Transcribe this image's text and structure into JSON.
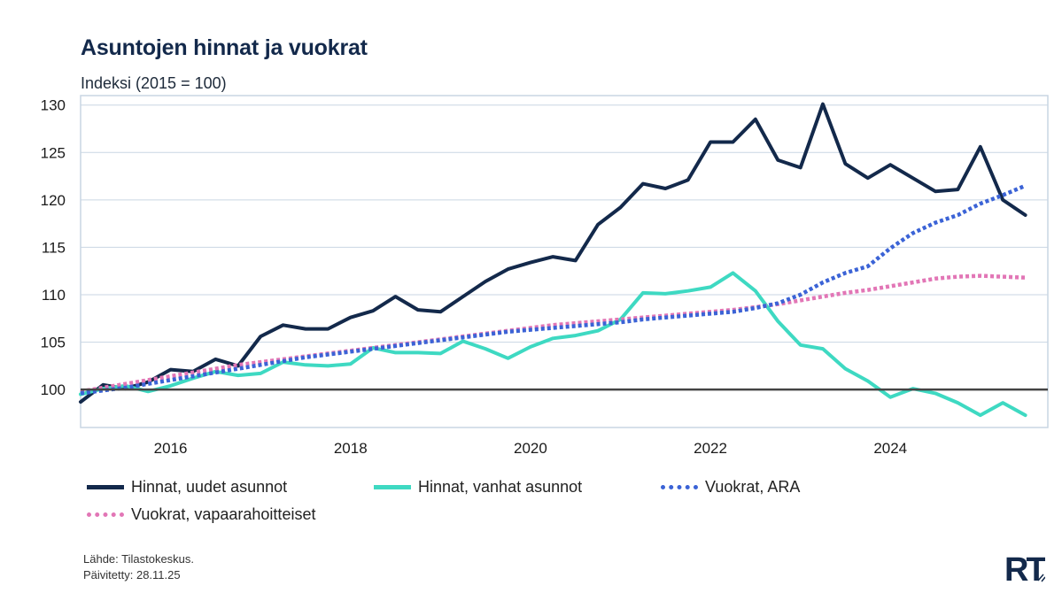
{
  "header": {
    "title": "Asuntojen hinnat ja vuokrat",
    "subtitle": "Indeksi (2015 = 100)"
  },
  "footer": {
    "source": "Lähde: Tilastokeskus.",
    "updated": "Päivitetty: 28.11.25"
  },
  "logo": {
    "text": "RT"
  },
  "colors": {
    "hinnat_uudet": "#13294b",
    "hinnat_vanhat": "#3ed9c2",
    "vuokrat_ara": "#3b63d6",
    "vuokrat_vapaa": "#e276b6",
    "baseline": "#444444",
    "grid": "#c9d6e3"
  },
  "chart_data": {
    "type": "line",
    "title": "Asuntojen hinnat ja vuokrat",
    "subtitle": "Indeksi (2015 = 100)",
    "xlabel": "",
    "ylabel": "",
    "xlim": [
      2015.0,
      2025.75
    ],
    "ylim": [
      96,
      131
    ],
    "y_ticks": [
      100,
      105,
      110,
      115,
      120,
      125,
      130
    ],
    "y_tick_labels": [
      "100",
      "105",
      "110",
      "115",
      "120",
      "125",
      "130"
    ],
    "x_ticks": [
      2016,
      2018,
      2020,
      2022,
      2024
    ],
    "x_tick_labels": [
      "2016",
      "2018",
      "2020",
      "2022",
      "2024"
    ],
    "baseline": 100,
    "grid": true,
    "legend_position": "bottom",
    "x": [
      2015.0,
      2015.25,
      2015.5,
      2015.75,
      2016.0,
      2016.25,
      2016.5,
      2016.75,
      2017.0,
      2017.25,
      2017.5,
      2017.75,
      2018.0,
      2018.25,
      2018.5,
      2018.75,
      2019.0,
      2019.25,
      2019.5,
      2019.75,
      2020.0,
      2020.25,
      2020.5,
      2020.75,
      2021.0,
      2021.25,
      2021.5,
      2021.75,
      2022.0,
      2022.25,
      2022.5,
      2022.75,
      2023.0,
      2023.25,
      2023.5,
      2023.75,
      2024.0,
      2024.25,
      2024.5,
      2024.75,
      2025.0,
      2025.25,
      2025.5
    ],
    "series": [
      {
        "name": "Hinnat, uudet asunnot",
        "style": "solid",
        "color_key": "hinnat_uudet",
        "values": [
          98.7,
          100.5,
          100.1,
          100.8,
          102.1,
          101.9,
          103.2,
          102.5,
          105.6,
          106.8,
          106.4,
          106.4,
          107.6,
          108.3,
          109.8,
          108.4,
          108.2,
          109.8,
          111.4,
          112.7,
          113.4,
          114.0,
          113.6,
          117.4,
          119.2,
          121.7,
          121.2,
          122.1,
          126.1,
          126.1,
          128.5,
          124.2,
          123.4,
          130.1,
          123.8,
          122.3,
          123.7,
          122.3,
          120.9,
          121.1,
          125.6,
          120.0,
          118.4
        ]
      },
      {
        "name": "Hinnat, vanhat asunnot",
        "style": "solid",
        "color_key": "hinnat_vanhat",
        "values": [
          99.5,
          100.1,
          100.4,
          99.8,
          100.4,
          101.2,
          101.9,
          101.5,
          101.7,
          102.9,
          102.6,
          102.5,
          102.7,
          104.4,
          103.9,
          103.9,
          103.8,
          105.1,
          104.3,
          103.3,
          104.5,
          105.4,
          105.7,
          106.2,
          107.4,
          110.2,
          110.1,
          110.4,
          110.8,
          112.3,
          110.4,
          107.2,
          104.7,
          104.3,
          102.2,
          100.9,
          99.2,
          100.1,
          99.6,
          98.6,
          97.3,
          98.6,
          97.3
        ]
      },
      {
        "name": "Vuokrat, ARA",
        "style": "dotted",
        "color_key": "vuokrat_ara",
        "values": [
          99.6,
          99.9,
          100.2,
          100.6,
          101.0,
          101.4,
          101.8,
          102.2,
          102.6,
          103.0,
          103.4,
          103.7,
          104.0,
          104.3,
          104.6,
          104.9,
          105.2,
          105.5,
          105.8,
          106.1,
          106.3,
          106.5,
          106.7,
          106.9,
          107.1,
          107.4,
          107.6,
          107.8,
          108.0,
          108.2,
          108.6,
          109.1,
          110.0,
          111.3,
          112.3,
          113.0,
          114.9,
          116.5,
          117.6,
          118.4,
          119.6,
          120.5,
          121.5
        ]
      },
      {
        "name": "Vuokrat, vapaarahoitteiset",
        "style": "dotted",
        "color_key": "vuokrat_vapaa",
        "values": [
          99.8,
          100.2,
          100.6,
          101.0,
          101.4,
          101.8,
          102.2,
          102.6,
          102.9,
          103.2,
          103.5,
          103.8,
          104.1,
          104.4,
          104.7,
          105.0,
          105.3,
          105.6,
          105.9,
          106.2,
          106.5,
          106.8,
          107.0,
          107.2,
          107.4,
          107.6,
          107.8,
          108.0,
          108.2,
          108.4,
          108.7,
          109.0,
          109.4,
          109.8,
          110.2,
          110.5,
          110.9,
          111.3,
          111.7,
          111.9,
          112.0,
          111.9,
          111.8
        ]
      }
    ]
  }
}
